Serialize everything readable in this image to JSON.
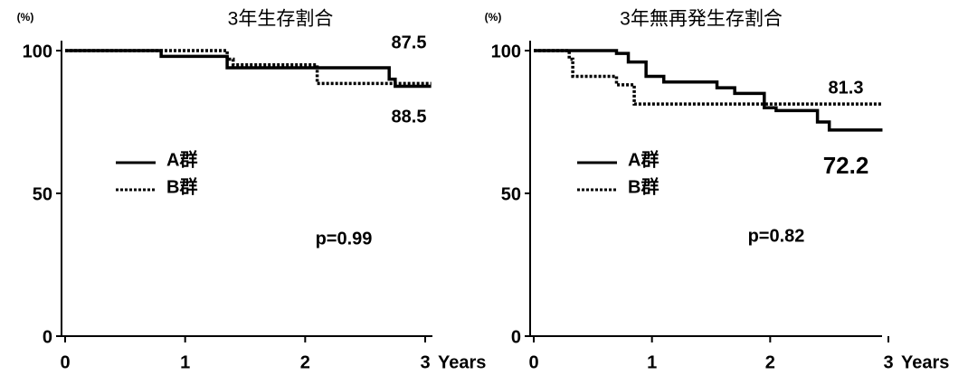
{
  "chart_data": [
    {
      "type": "step",
      "title": "3年生存割合",
      "ylabel": "(%)",
      "xlabel": "Years",
      "xlim": [
        0,
        3
      ],
      "ylim": [
        0,
        100
      ],
      "xticks": [
        0,
        1,
        2,
        3
      ],
      "yticks": [
        0,
        50,
        100
      ],
      "series": [
        {
          "name": "A群",
          "style": "solid",
          "color": "#000000",
          "x": [
            0,
            0.8,
            1.35,
            2.7,
            2.75,
            3.05
          ],
          "values": [
            100,
            98,
            94,
            90,
            87.5,
            87.5
          ]
        },
        {
          "name": "B群",
          "style": "dotted",
          "color": "#000000",
          "x": [
            0,
            1.35,
            1.4,
            2.1,
            3.05
          ],
          "values": [
            100,
            97,
            95,
            88.5,
            88.5
          ]
        }
      ],
      "annotations": [
        "87.5",
        "88.5",
        "p=0.99"
      ]
    },
    {
      "type": "step",
      "title": "3年無再発生存割合",
      "ylabel": "(%)",
      "xlabel": "Years",
      "xlim": [
        0,
        3
      ],
      "ylim": [
        0,
        100
      ],
      "xticks": [
        0,
        1,
        2,
        3
      ],
      "yticks": [
        0,
        50,
        100
      ],
      "series": [
        {
          "name": "A群",
          "style": "solid",
          "color": "#000000",
          "x": [
            0,
            0.7,
            0.8,
            0.95,
            1.1,
            1.55,
            1.7,
            1.95,
            2.05,
            2.4,
            2.5,
            2.95
          ],
          "values": [
            100,
            99,
            96,
            91,
            89,
            87,
            85,
            80,
            79,
            75,
            72.2,
            72.2
          ]
        },
        {
          "name": "B群",
          "style": "dotted",
          "color": "#000000",
          "x": [
            0,
            0.3,
            0.33,
            0.7,
            0.85,
            2.95
          ],
          "values": [
            100,
            97,
            91,
            88,
            81.3,
            81.3
          ]
        }
      ],
      "annotations": [
        "81.3",
        "72.2",
        "p=0.82"
      ]
    }
  ]
}
